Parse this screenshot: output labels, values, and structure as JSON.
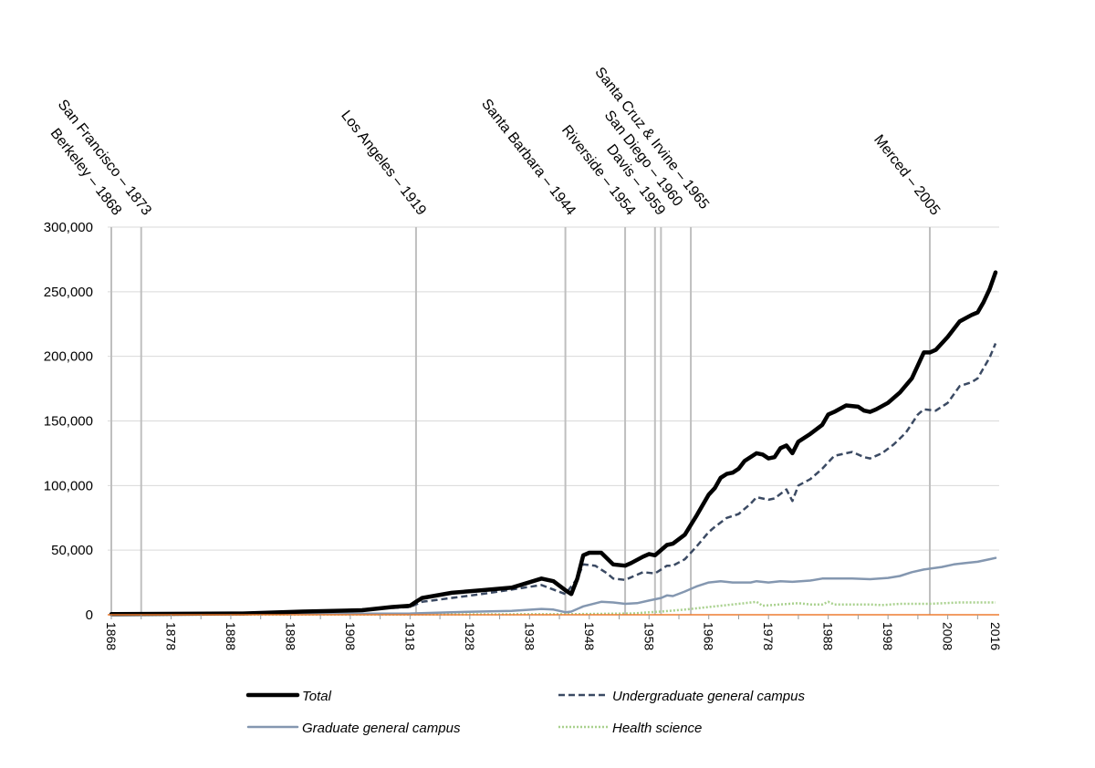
{
  "chart_data": {
    "type": "line",
    "title": "",
    "xlabel": "",
    "ylabel": "",
    "xlim": [
      1868,
      2016
    ],
    "ylim": [
      0,
      300000
    ],
    "grid": true,
    "legend_position": "bottom",
    "y_ticks": [
      0,
      50000,
      100000,
      150000,
      200000,
      250000,
      300000
    ],
    "y_tick_labels": [
      "0",
      "50,000",
      "100,000",
      "150,000",
      "200,000",
      "250,000",
      "300,000"
    ],
    "x_ticks": [
      1868,
      1878,
      1888,
      1898,
      1908,
      1918,
      1928,
      1938,
      1948,
      1958,
      1968,
      1978,
      1988,
      1998,
      2008,
      2016
    ],
    "x_tick_labels": [
      "1868",
      "1878",
      "1888",
      "1898",
      "1908",
      "1918",
      "1928",
      "1938",
      "1948",
      "1958",
      "1968",
      "1978",
      "1988",
      "1998",
      "2008",
      "2016"
    ],
    "annotations": [
      {
        "year": 1868,
        "label": "Berkeley – 1868"
      },
      {
        "year": 1873,
        "label": "San Francisco – 1873"
      },
      {
        "year": 1919,
        "label": "Los Angeles – 1919"
      },
      {
        "year": 1944,
        "label": "Santa Barbara – 1944"
      },
      {
        "year": 1954,
        "label": "Riverside – 1954"
      },
      {
        "year": 1959,
        "label": "Davis – 1959"
      },
      {
        "year": 1960,
        "label": "San Diego – 1960"
      },
      {
        "year": 1965,
        "label": "Santa Cruz & Irvine – 1965"
      },
      {
        "year": 2005,
        "label": "Merced – 2005"
      }
    ],
    "series": [
      {
        "name": "Total",
        "color": "#000000",
        "style": "solid-thick",
        "points": [
          [
            1868,
            500
          ],
          [
            1890,
            1000
          ],
          [
            1900,
            2500
          ],
          [
            1910,
            3500
          ],
          [
            1915,
            6000
          ],
          [
            1918,
            7000
          ],
          [
            1919,
            10000
          ],
          [
            1920,
            13000
          ],
          [
            1925,
            17000
          ],
          [
            1930,
            19000
          ],
          [
            1935,
            21000
          ],
          [
            1940,
            28000
          ],
          [
            1942,
            26000
          ],
          [
            1944,
            19000
          ],
          [
            1945,
            16000
          ],
          [
            1946,
            28000
          ],
          [
            1947,
            46000
          ],
          [
            1948,
            48000
          ],
          [
            1950,
            48000
          ],
          [
            1952,
            39000
          ],
          [
            1954,
            38000
          ],
          [
            1955,
            40000
          ],
          [
            1957,
            45000
          ],
          [
            1958,
            47000
          ],
          [
            1959,
            46000
          ],
          [
            1961,
            54000
          ],
          [
            1962,
            55000
          ],
          [
            1964,
            62000
          ],
          [
            1966,
            77000
          ],
          [
            1968,
            93000
          ],
          [
            1969,
            98000
          ],
          [
            1970,
            106000
          ],
          [
            1971,
            109000
          ],
          [
            1972,
            110000
          ],
          [
            1973,
            113000
          ],
          [
            1974,
            119000
          ],
          [
            1976,
            125000
          ],
          [
            1977,
            124000
          ],
          [
            1978,
            121000
          ],
          [
            1979,
            122000
          ],
          [
            1980,
            129000
          ],
          [
            1981,
            131000
          ],
          [
            1982,
            125000
          ],
          [
            1983,
            134000
          ],
          [
            1985,
            140000
          ],
          [
            1987,
            147000
          ],
          [
            1988,
            155000
          ],
          [
            1989,
            157000
          ],
          [
            1991,
            162000
          ],
          [
            1993,
            161000
          ],
          [
            1994,
            158000
          ],
          [
            1995,
            157000
          ],
          [
            1996,
            159000
          ],
          [
            1998,
            164000
          ],
          [
            2000,
            172000
          ],
          [
            2002,
            183000
          ],
          [
            2003,
            193000
          ],
          [
            2004,
            203000
          ],
          [
            2005,
            203000
          ],
          [
            2006,
            205000
          ],
          [
            2008,
            215000
          ],
          [
            2010,
            227000
          ],
          [
            2012,
            232000
          ],
          [
            2013,
            234000
          ],
          [
            2014,
            242000
          ],
          [
            2015,
            252000
          ],
          [
            2016,
            265000
          ]
        ]
      },
      {
        "name": "Undergraduate general campus",
        "color": "#3b4a63",
        "style": "dashed",
        "points": [
          [
            1868,
            400
          ],
          [
            1900,
            2000
          ],
          [
            1918,
            6000
          ],
          [
            1920,
            10000
          ],
          [
            1930,
            16000
          ],
          [
            1940,
            23000
          ],
          [
            1944,
            16000
          ],
          [
            1946,
            28000
          ],
          [
            1947,
            39000
          ],
          [
            1949,
            38000
          ],
          [
            1951,
            32000
          ],
          [
            1952,
            28000
          ],
          [
            1954,
            27000
          ],
          [
            1956,
            31000
          ],
          [
            1957,
            33000
          ],
          [
            1959,
            32000
          ],
          [
            1961,
            38000
          ],
          [
            1962,
            38000
          ],
          [
            1964,
            43000
          ],
          [
            1966,
            53000
          ],
          [
            1968,
            64000
          ],
          [
            1969,
            68000
          ],
          [
            1971,
            75000
          ],
          [
            1973,
            78000
          ],
          [
            1975,
            86000
          ],
          [
            1976,
            91000
          ],
          [
            1978,
            89000
          ],
          [
            1979,
            90000
          ],
          [
            1981,
            97000
          ],
          [
            1982,
            88000
          ],
          [
            1983,
            100000
          ],
          [
            1985,
            105000
          ],
          [
            1987,
            113000
          ],
          [
            1989,
            123000
          ],
          [
            1991,
            125000
          ],
          [
            1992,
            126000
          ],
          [
            1994,
            122000
          ],
          [
            1995,
            121000
          ],
          [
            1997,
            125000
          ],
          [
            1999,
            132000
          ],
          [
            2001,
            141000
          ],
          [
            2003,
            155000
          ],
          [
            2004,
            159000
          ],
          [
            2006,
            158000
          ],
          [
            2008,
            164000
          ],
          [
            2010,
            177000
          ],
          [
            2012,
            180000
          ],
          [
            2013,
            183000
          ],
          [
            2015,
            199000
          ],
          [
            2016,
            210000
          ]
        ]
      },
      {
        "name": "Graduate general campus",
        "color": "#8497b0",
        "style": "solid",
        "points": [
          [
            1868,
            100
          ],
          [
            1918,
            1000
          ],
          [
            1925,
            2000
          ],
          [
            1935,
            3000
          ],
          [
            1940,
            4500
          ],
          [
            1942,
            4000
          ],
          [
            1944,
            2000
          ],
          [
            1945,
            2500
          ],
          [
            1947,
            6500
          ],
          [
            1950,
            10000
          ],
          [
            1952,
            9500
          ],
          [
            1954,
            8500
          ],
          [
            1956,
            9000
          ],
          [
            1958,
            11000
          ],
          [
            1960,
            13000
          ],
          [
            1961,
            15000
          ],
          [
            1962,
            14500
          ],
          [
            1964,
            18000
          ],
          [
            1966,
            22000
          ],
          [
            1968,
            25000
          ],
          [
            1970,
            26000
          ],
          [
            1972,
            25000
          ],
          [
            1975,
            25000
          ],
          [
            1976,
            26000
          ],
          [
            1978,
            25000
          ],
          [
            1980,
            26000
          ],
          [
            1982,
            25500
          ],
          [
            1985,
            26500
          ],
          [
            1987,
            28000
          ],
          [
            1990,
            28000
          ],
          [
            1992,
            28000
          ],
          [
            1995,
            27500
          ],
          [
            1998,
            28500
          ],
          [
            2000,
            30000
          ],
          [
            2002,
            33000
          ],
          [
            2004,
            35000
          ],
          [
            2007,
            37000
          ],
          [
            2009,
            39000
          ],
          [
            2011,
            40000
          ],
          [
            2013,
            41000
          ],
          [
            2015,
            43000
          ],
          [
            2016,
            44000
          ]
        ]
      },
      {
        "name": "Health science",
        "color": "#a9d18e",
        "style": "dotted",
        "points": [
          [
            1868,
            0
          ],
          [
            1918,
            200
          ],
          [
            1945,
            500
          ],
          [
            1955,
            1000
          ],
          [
            1960,
            2500
          ],
          [
            1964,
            4000
          ],
          [
            1966,
            5000
          ],
          [
            1970,
            7000
          ],
          [
            1974,
            9000
          ],
          [
            1976,
            10000
          ],
          [
            1977,
            7000
          ],
          [
            1980,
            8000
          ],
          [
            1983,
            9000
          ],
          [
            1985,
            8000
          ],
          [
            1987,
            8000
          ],
          [
            1988,
            10000
          ],
          [
            1989,
            8000
          ],
          [
            1995,
            8000
          ],
          [
            1997,
            7500
          ],
          [
            2000,
            8500
          ],
          [
            2005,
            8500
          ],
          [
            2010,
            9500
          ],
          [
            2016,
            9500
          ]
        ]
      }
    ]
  }
}
